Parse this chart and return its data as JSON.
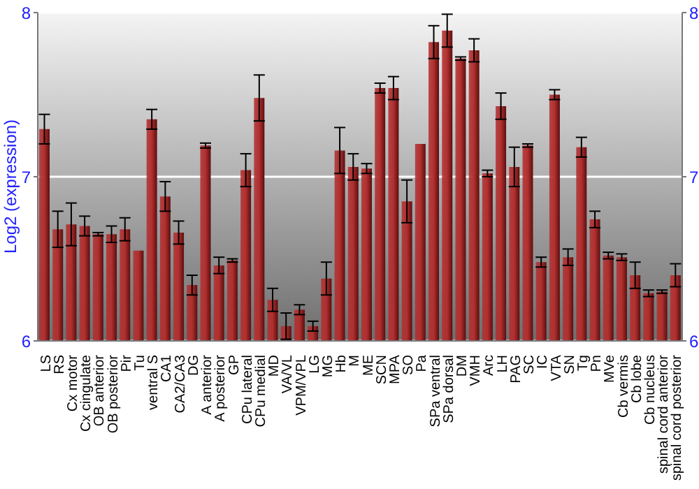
{
  "chart_data": {
    "type": "bar",
    "ylabel": "Log2 (expression)",
    "color": "#b22f2f",
    "categories": [
      "LS",
      "RS",
      "Cx motor",
      "Cx cingulate",
      "OB anterior",
      "OB posterior",
      "Pir",
      "Tu",
      "ventral S",
      "CA1",
      "CA2/CA3",
      "DG",
      "A anterior",
      "A posterior",
      "GP",
      "CPu lateral",
      "CPu medial",
      "MD",
      "VA/VL",
      "VPM/VPL",
      "LG",
      "MG",
      "Hb",
      "M",
      "ME",
      "SCN",
      "MPA",
      "SO",
      "Pa",
      "SPa ventral",
      "SPa dorsal",
      "DM",
      "VMH",
      "Arc",
      "LH",
      "PAG",
      "SC",
      "IC",
      "VTA",
      "SN",
      "Tg",
      "Pn",
      "MVe",
      "Cb vermis",
      "Cb lobe",
      "Cb nucleus",
      "spinal cord anterior",
      "spinal cord posterior"
    ],
    "values": [
      7.29,
      6.68,
      6.71,
      6.7,
      6.65,
      6.65,
      6.68,
      6.55,
      7.35,
      6.88,
      6.66,
      6.34,
      7.19,
      6.46,
      6.49,
      7.04,
      7.48,
      6.25,
      6.09,
      6.19,
      6.09,
      6.38,
      7.16,
      7.06,
      7.05,
      7.54,
      7.54,
      6.85,
      7.2,
      7.82,
      7.89,
      7.72,
      7.77,
      7.02,
      7.43,
      7.06,
      7.19,
      6.48,
      7.5,
      6.51,
      7.18,
      6.74,
      6.52,
      6.51,
      6.4,
      6.29,
      6.3,
      6.4
    ],
    "errors": [
      0.09,
      0.11,
      0.13,
      0.06,
      0.01,
      0.05,
      0.07,
      null,
      0.06,
      0.09,
      0.07,
      0.06,
      0.015,
      0.05,
      0.01,
      0.1,
      0.14,
      0.07,
      0.08,
      0.03,
      0.03,
      0.1,
      0.14,
      0.08,
      0.03,
      0.03,
      0.07,
      0.13,
      null,
      0.1,
      0.1,
      0.01,
      0.07,
      0.02,
      0.08,
      0.12,
      0.01,
      0.03,
      0.03,
      0.05,
      0.06,
      0.05,
      0.02,
      0.02,
      0.08,
      0.02,
      0.01,
      0.07
    ],
    "ylim": [
      6,
      8
    ],
    "yticks": [
      6,
      7,
      8
    ],
    "y2lim": [
      6,
      8
    ],
    "y2ticks": [
      6,
      7,
      8
    ],
    "grid": "y"
  }
}
